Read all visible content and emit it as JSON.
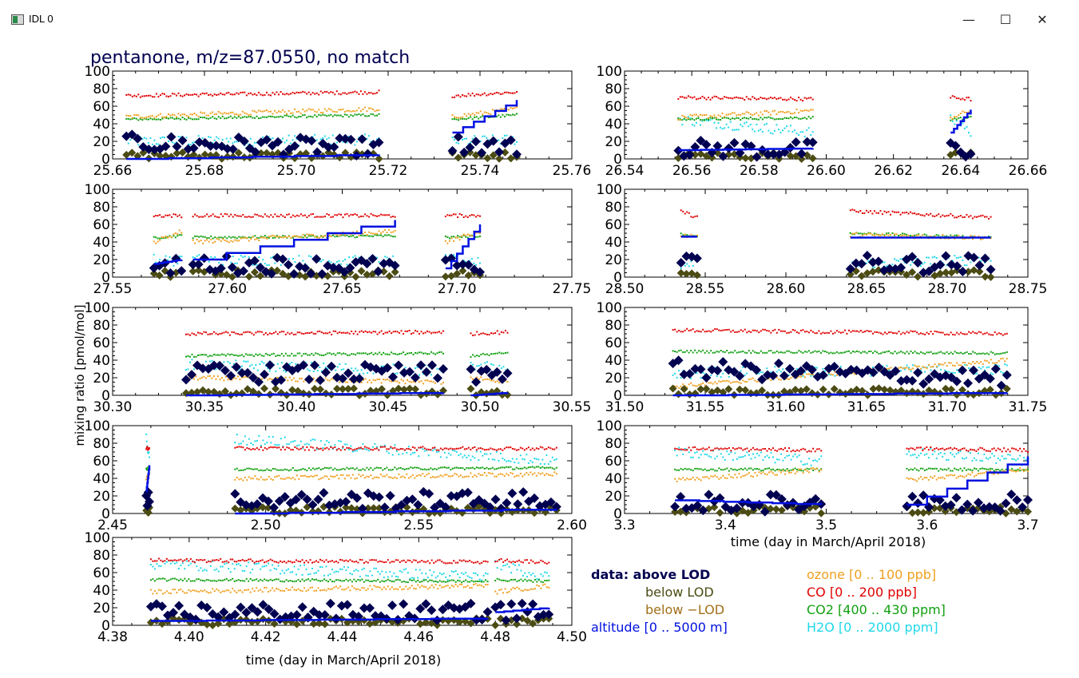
{
  "window": {
    "title": "IDL 0",
    "icon": "idl-window-icon",
    "minimize_glyph": "—",
    "maximize_glyph": "☐",
    "close_glyph": "✕"
  },
  "figure": {
    "title": "pentanone, m/z=87.0550, no match",
    "ylabel": "mixing ratio [pmol/mol]",
    "xlabel": "time (day in March/April 2018)",
    "colors": {
      "above_lod": "#000050",
      "below_lod": "#4b4b14",
      "altitude": "#0010e0",
      "ozone": "#f0a020",
      "co": "#e00000",
      "co2": "#10a010",
      "h2o": "#20d8e8",
      "axis": "#000000"
    },
    "legend_left": [
      {
        "text": "data: above LOD",
        "color": "#000050",
        "bold": true
      },
      {
        "text": "below LOD",
        "color": "#4b4b14",
        "bold": false
      },
      {
        "text": "below −LOD",
        "color": "#a0701a",
        "bold": false
      },
      {
        "text": "altitude [0 .. 5000 m]",
        "color": "#0010e0",
        "bold": false
      }
    ],
    "legend_right": [
      {
        "text": "ozone [0 .. 100 ppb]",
        "color": "#f0a020"
      },
      {
        "text": "CO [0 .. 200 ppb]",
        "color": "#e00000"
      },
      {
        "text": "CO2 [400 .. 430 ppm]",
        "color": "#10a010"
      },
      {
        "text": "H2O [0 .. 2000 ppm]",
        "color": "#20d8e8"
      }
    ]
  },
  "chart_data": [
    {
      "type": "scatter",
      "panel": 1,
      "xlim": [
        25.66,
        25.76
      ],
      "ylim": [
        0,
        100
      ],
      "xticks": [
        "25.66",
        "25.68",
        "25.70",
        "25.72",
        "25.74",
        "25.76"
      ],
      "yticks": [
        "0",
        "20",
        "40",
        "60",
        "80",
        "100"
      ],
      "segments": [
        [
          25.663,
          25.718
        ],
        [
          25.734,
          25.748
        ]
      ],
      "levels": {
        "co": [
          72,
          76
        ],
        "ozone": [
          48,
          57
        ],
        "co2": [
          45,
          50
        ],
        "h2o": [
          20,
          22
        ],
        "above_lod": [
          18,
          13
        ],
        "altitude": [
          [
            0,
            5
          ],
          [
            30,
            67
          ],
          [
            0,
            85
          ]
        ]
      }
    },
    {
      "type": "scatter",
      "panel": 2,
      "xlim": [
        26.54,
        26.66
      ],
      "ylim": [
        0,
        100
      ],
      "xticks": [
        "26.54",
        "26.56",
        "26.58",
        "26.60",
        "26.62",
        "26.64",
        "26.66"
      ],
      "yticks": [
        "0",
        "20",
        "40",
        "60",
        "80",
        "100"
      ],
      "segments": [
        [
          26.556,
          26.596
        ],
        [
          26.637,
          26.643
        ]
      ],
      "levels": {
        "co": [
          70,
          68
        ],
        "ozone": [
          47,
          55
        ],
        "co2": [
          45,
          47
        ],
        "h2o": [
          45,
          30
        ],
        "above_lod": [
          12,
          10
        ],
        "altitude": [
          [
            10,
            12
          ],
          [
            30,
            56
          ],
          [
            15,
            60
          ]
        ]
      }
    },
    {
      "type": "scatter",
      "panel": 3,
      "xlim": [
        27.55,
        27.75
      ],
      "ylim": [
        0,
        100
      ],
      "xticks": [
        "27.55",
        "27.60",
        "27.65",
        "27.70",
        "27.75"
      ],
      "yticks": [
        "0",
        "20",
        "40",
        "60",
        "80",
        "100"
      ],
      "segments": [
        [
          27.568,
          27.58
        ],
        [
          27.585,
          27.673
        ],
        [
          27.695,
          27.71
        ]
      ],
      "levels": {
        "co": [
          70,
          70
        ],
        "ozone": [
          40,
          52
        ],
        "co2": [
          45,
          47
        ],
        "h2o": [
          20,
          18
        ],
        "above_lod": [
          15,
          12
        ],
        "altitude": [
          [
            15,
            20
          ],
          [
            20,
            65
          ],
          [
            10,
            60
          ]
        ]
      }
    },
    {
      "type": "scatter",
      "panel": 4,
      "xlim": [
        28.5,
        28.75
      ],
      "ylim": [
        0,
        100
      ],
      "xticks": [
        "28.50",
        "28.55",
        "28.60",
        "28.65",
        "28.70",
        "28.75"
      ],
      "yticks": [
        "0",
        "20",
        "40",
        "60",
        "80",
        "100"
      ],
      "segments": [
        [
          28.535,
          28.545
        ],
        [
          28.64,
          28.727
        ]
      ],
      "levels": {
        "co": [
          75,
          68
        ],
        "ozone": [
          48,
          45
        ],
        "co2": [
          50,
          45
        ],
        "h2o": [
          15,
          20
        ],
        "above_lod": [
          15,
          15
        ],
        "altitude": [
          [
            46,
            46
          ],
          [
            45,
            45
          ],
          [
            20,
            5
          ]
        ]
      }
    },
    {
      "type": "scatter",
      "panel": 5,
      "xlim": [
        30.3,
        30.55
      ],
      "ylim": [
        0,
        100
      ],
      "xticks": [
        "30.30",
        "30.35",
        "30.40",
        "30.45",
        "30.50",
        "30.55"
      ],
      "yticks": [
        "0",
        "20",
        "40",
        "60",
        "80",
        "100"
      ],
      "segments": [
        [
          30.34,
          30.48
        ],
        [
          30.495,
          30.515
        ]
      ],
      "levels": {
        "co": [
          70,
          72
        ],
        "ozone": [
          20,
          15
        ],
        "co2": [
          45,
          48
        ],
        "h2o": [
          35,
          28
        ],
        "above_lod": [
          25,
          25
        ],
        "altitude": [
          [
            0,
            3
          ],
          [
            0,
            3
          ],
          [
            20,
            80
          ]
        ]
      }
    },
    {
      "type": "scatter",
      "panel": 6,
      "xlim": [
        31.5,
        31.75
      ],
      "ylim": [
        0,
        100
      ],
      "xticks": [
        "31.50",
        "31.55",
        "31.60",
        "31.65",
        "31.70",
        "31.75"
      ],
      "yticks": [
        "0",
        "20",
        "40",
        "60",
        "80",
        "100"
      ],
      "segments": [
        [
          31.53,
          31.737
        ]
      ],
      "levels": {
        "co": [
          74,
          70
        ],
        "ozone": [
          10,
          40
        ],
        "co2": [
          50,
          48
        ],
        "h2o": [
          25,
          30
        ],
        "above_lod": [
          30,
          20
        ],
        "altitude": [
          [
            0,
            3
          ],
          [
            3,
            5
          ],
          [
            0,
            3
          ]
        ]
      }
    },
    {
      "type": "scatter",
      "panel": 7,
      "xlim": [
        2.45,
        2.6
      ],
      "ylim": [
        0,
        100
      ],
      "xticks": [
        "2.45",
        "2.50",
        "2.55",
        "2.60"
      ],
      "yticks": [
        "0",
        "20",
        "40",
        "60",
        "80",
        "100"
      ],
      "segments": [
        [
          2.461,
          2.462
        ],
        [
          2.49,
          2.595
        ]
      ],
      "levels": {
        "co": [
          74,
          74
        ],
        "ozone": [
          40,
          45
        ],
        "co2": [
          50,
          52
        ],
        "h2o": [
          85,
          60
        ],
        "above_lod": [
          15,
          15
        ],
        "altitude": [
          [
            25,
            55
          ],
          [
            0,
            5
          ],
          [
            10,
            20
          ]
        ]
      }
    },
    {
      "type": "scatter",
      "panel": 8,
      "xlim": [
        3.3,
        3.7
      ],
      "ylim": [
        0,
        100
      ],
      "xticks": [
        "3.3",
        "3.4",
        "3.5",
        "3.6",
        "3.7"
      ],
      "yticks": [
        "0",
        "20",
        "40",
        "60",
        "80",
        "100"
      ],
      "segments": [
        [
          3.35,
          3.495
        ],
        [
          3.58,
          3.7
        ]
      ],
      "levels": {
        "co": [
          74,
          72
        ],
        "ozone": [
          38,
          50
        ],
        "co2": [
          50,
          50
        ],
        "h2o": [
          70,
          60
        ],
        "above_lod": [
          12,
          12
        ],
        "altitude": [
          [
            15,
            10
          ],
          [
            10,
            65
          ],
          [
            20,
            0
          ]
        ]
      }
    },
    {
      "type": "scatter",
      "panel": 9,
      "xlim": [
        4.38,
        4.5
      ],
      "ylim": [
        0,
        100
      ],
      "xticks": [
        "4.38",
        "4.40",
        "4.42",
        "4.44",
        "4.46",
        "4.48",
        "4.50"
      ],
      "yticks": [
        "0",
        "20",
        "40",
        "60",
        "80",
        "100"
      ],
      "segments": [
        [
          4.39,
          4.478
        ],
        [
          4.48,
          4.494
        ]
      ],
      "levels": {
        "co": [
          74,
          72
        ],
        "ozone": [
          38,
          45
        ],
        "co2": [
          52,
          50
        ],
        "h2o": [
          70,
          55
        ],
        "above_lod": [
          15,
          15
        ],
        "altitude": [
          [
            5,
            8
          ],
          [
            15,
            20
          ],
          [
            5,
            10
          ]
        ]
      }
    }
  ]
}
